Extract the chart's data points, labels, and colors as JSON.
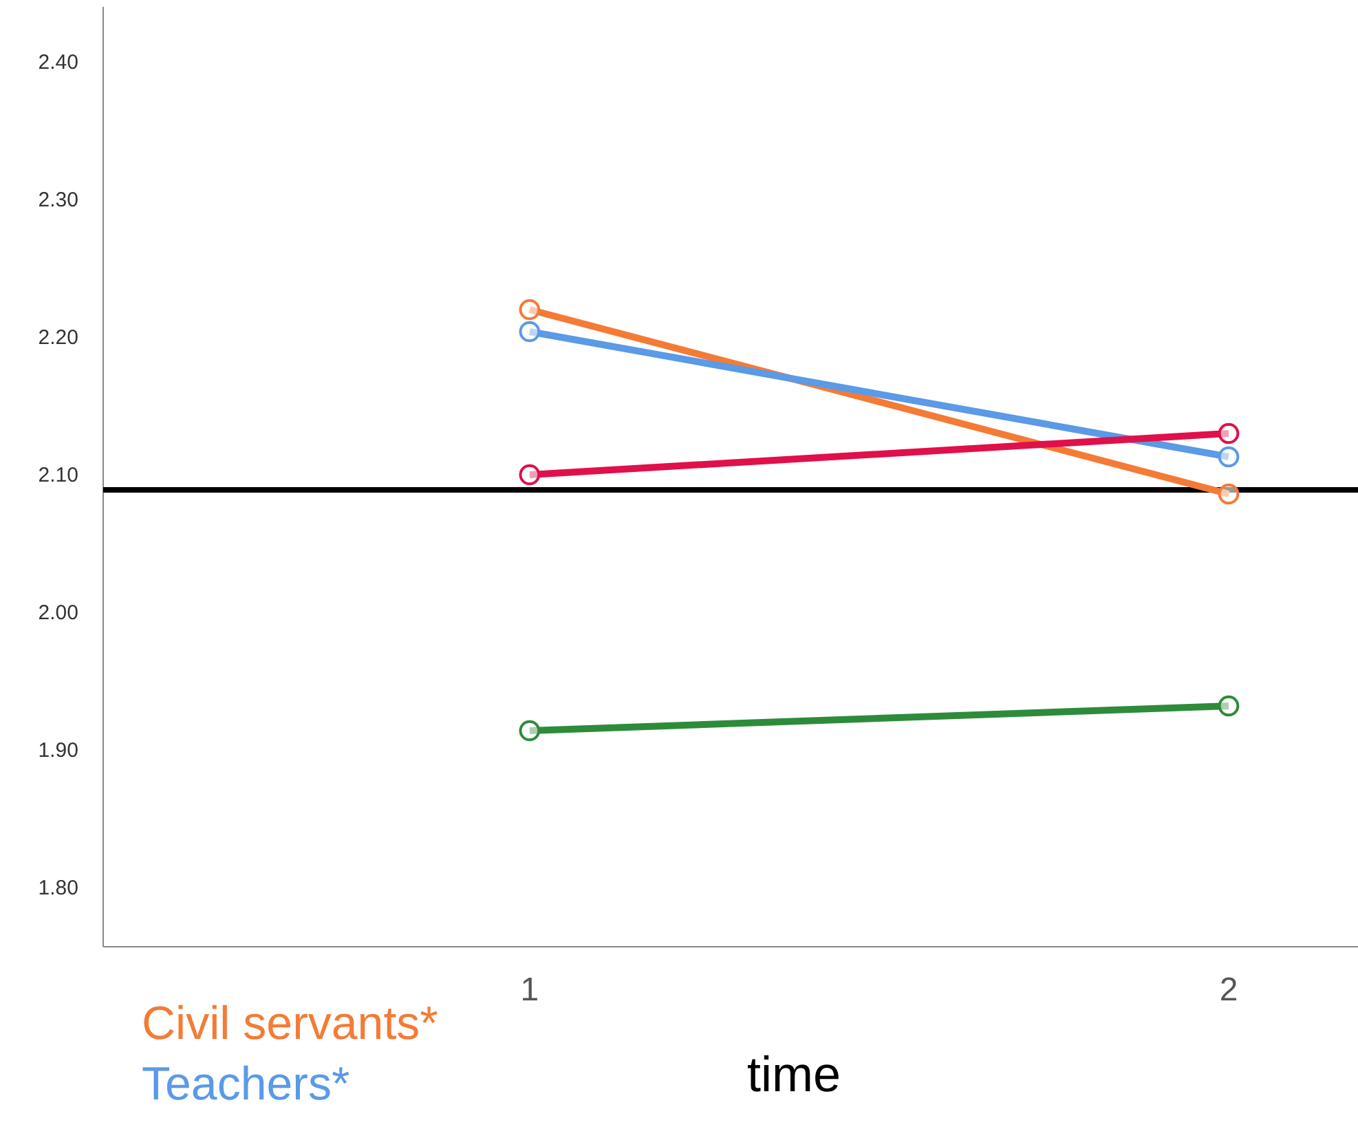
{
  "chart_data": {
    "type": "line",
    "xlabel": "time",
    "x": [
      1,
      2
    ],
    "xlim": [
      0.39,
      2.185
    ],
    "xticks": [
      1,
      2
    ],
    "ylim": [
      1.757,
      2.44
    ],
    "yticks": [
      {
        "value": 1.8,
        "label": "1.80"
      },
      {
        "value": 1.9,
        "label": "1.90"
      },
      {
        "value": 2.0,
        "label": "2.00"
      },
      {
        "value": 2.1,
        "label": "2.10"
      },
      {
        "value": 2.2,
        "label": "2.20"
      },
      {
        "value": 2.3,
        "label": "2.30"
      },
      {
        "value": 2.4,
        "label": "2.40"
      }
    ],
    "series": [
      {
        "name": "Civil servants*",
        "color": "#f47b36",
        "values": [
          2.22,
          2.086
        ]
      },
      {
        "name": "Teachers*",
        "color": "#5a9ae6",
        "values": [
          2.204,
          2.113
        ]
      },
      {
        "color": "#e0104a",
        "values": [
          2.1,
          2.13
        ]
      },
      {
        "color": "#2e8b3a",
        "values": [
          1.914,
          1.932
        ]
      }
    ],
    "ref_lines": [
      {
        "axis": "y",
        "value": 2.089,
        "color": "#000000"
      }
    ],
    "marker": "circle",
    "line_style": "solid",
    "grid": false,
    "legend": "bottom left"
  }
}
